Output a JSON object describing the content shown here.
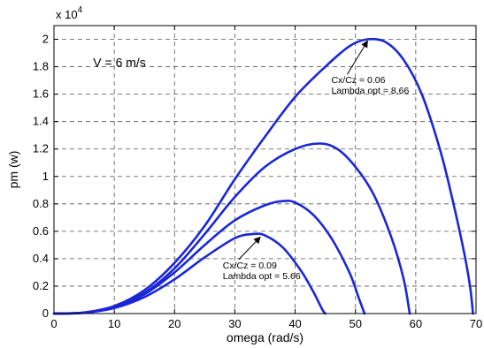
{
  "chart_data": {
    "type": "line",
    "xlabel": "omega (rad/s)",
    "ylabel": "pm (w)",
    "y_multiplier_label": "x 10",
    "y_multiplier_exp": "4",
    "xlim": [
      0,
      70
    ],
    "ylim": [
      0,
      2.1
    ],
    "x_ticks": [
      0,
      10,
      20,
      30,
      40,
      50,
      60,
      70
    ],
    "x_tick_labels": [
      "0",
      "10",
      "20",
      "30",
      "40",
      "50",
      "60",
      "70"
    ],
    "y_ticks": [
      0,
      0.2,
      0.4,
      0.6,
      0.8,
      1,
      1.2,
      1.4,
      1.6,
      1.8,
      2
    ],
    "y_tick_labels": [
      "0",
      "0.2",
      "0.4",
      "0.6",
      "0.8",
      "1",
      "1.2",
      "1.4",
      "1.6",
      "1.8",
      "2"
    ],
    "grid": true,
    "series": [
      {
        "points": [
          [
            0,
            0
          ],
          [
            5,
            0.006
          ],
          [
            10,
            0.04
          ],
          [
            15,
            0.12
          ],
          [
            20,
            0.25
          ],
          [
            25,
            0.41
          ],
          [
            30,
            0.55
          ],
          [
            33,
            0.58
          ],
          [
            35,
            0.57
          ],
          [
            38,
            0.48
          ],
          [
            41,
            0.31
          ],
          [
            43,
            0.16
          ],
          [
            44.5,
            0.03
          ],
          [
            45,
            0
          ]
        ]
      },
      {
        "points": [
          [
            0,
            0
          ],
          [
            5,
            0.006
          ],
          [
            10,
            0.045
          ],
          [
            15,
            0.14
          ],
          [
            20,
            0.3
          ],
          [
            25,
            0.5
          ],
          [
            30,
            0.68
          ],
          [
            35,
            0.79
          ],
          [
            38,
            0.82
          ],
          [
            40,
            0.81
          ],
          [
            43,
            0.72
          ],
          [
            46,
            0.55
          ],
          [
            49,
            0.3
          ],
          [
            50.5,
            0.12
          ],
          [
            51.5,
            0
          ]
        ]
      },
      {
        "points": [
          [
            0,
            0
          ],
          [
            5,
            0.007
          ],
          [
            10,
            0.05
          ],
          [
            15,
            0.15
          ],
          [
            20,
            0.33
          ],
          [
            25,
            0.58
          ],
          [
            30,
            0.85
          ],
          [
            35,
            1.07
          ],
          [
            40,
            1.2
          ],
          [
            44,
            1.24
          ],
          [
            47,
            1.2
          ],
          [
            50,
            1.07
          ],
          [
            53,
            0.87
          ],
          [
            56,
            0.55
          ],
          [
            58,
            0.25
          ],
          [
            59,
            0
          ]
        ]
      },
      {
        "points": [
          [
            0,
            0
          ],
          [
            5,
            0.008
          ],
          [
            10,
            0.055
          ],
          [
            15,
            0.17
          ],
          [
            20,
            0.37
          ],
          [
            25,
            0.64
          ],
          [
            30,
            0.98
          ],
          [
            35,
            1.29
          ],
          [
            40,
            1.58
          ],
          [
            45,
            1.8
          ],
          [
            49,
            1.95
          ],
          [
            52,
            2.0
          ],
          [
            55,
            1.98
          ],
          [
            58,
            1.85
          ],
          [
            61,
            1.6
          ],
          [
            64,
            1.2
          ],
          [
            66,
            0.85
          ],
          [
            68,
            0.45
          ],
          [
            69,
            0.2
          ],
          [
            69.5,
            0
          ]
        ]
      }
    ],
    "annotations": [
      {
        "text": "V = 6 m/s",
        "x": 6.5,
        "y": 1.8
      },
      {
        "text_lines": [
          "Cx/Cz = 0.06",
          "Lambda opt = 8.66"
        ],
        "x": 46,
        "y": 1.68,
        "arrow_to": [
          52,
          2.0
        ]
      },
      {
        "text_lines": [
          "Cx/Cz = 0.09",
          "Lambda opt = 5.66"
        ],
        "x": 28,
        "y": 0.33,
        "arrow_to": [
          34.2,
          0.57
        ]
      }
    ]
  }
}
